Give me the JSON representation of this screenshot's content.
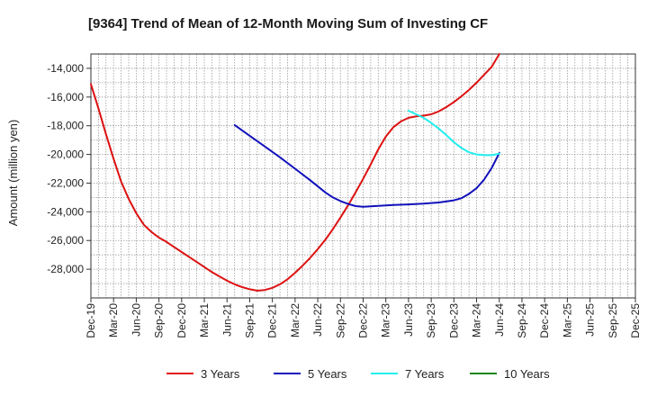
{
  "chart_data": {
    "type": "line",
    "title": "[9364]  Trend of Mean of 12-Month Moving Sum of Investing CF",
    "xlabel": "",
    "ylabel": "Amount (million yen)",
    "ylim": [
      -30000,
      -13000
    ],
    "y_ticks": [
      -28000,
      -26000,
      -24000,
      -22000,
      -20000,
      -18000,
      -16000,
      -14000
    ],
    "y_tick_labels": [
      "-28,000",
      "-26,000",
      "-24,000",
      "-22,000",
      "-20,000",
      "-18,000",
      "-16,000",
      "-14,000"
    ],
    "x_range_months": [
      0,
      72
    ],
    "x_ticks": [
      {
        "label": "Dec-19",
        "m": 0
      },
      {
        "label": "Mar-20",
        "m": 3
      },
      {
        "label": "Jun-20",
        "m": 6
      },
      {
        "label": "Sep-20",
        "m": 9
      },
      {
        "label": "Dec-20",
        "m": 12
      },
      {
        "label": "Mar-21",
        "m": 15
      },
      {
        "label": "Jun-21",
        "m": 18
      },
      {
        "label": "Sep-21",
        "m": 21
      },
      {
        "label": "Dec-21",
        "m": 24
      },
      {
        "label": "Mar-22",
        "m": 27
      },
      {
        "label": "Jun-22",
        "m": 30
      },
      {
        "label": "Sep-22",
        "m": 33
      },
      {
        "label": "Dec-22",
        "m": 36
      },
      {
        "label": "Mar-23",
        "m": 39
      },
      {
        "label": "Jun-23",
        "m": 42
      },
      {
        "label": "Sep-23",
        "m": 45
      },
      {
        "label": "Dec-23",
        "m": 48
      },
      {
        "label": "Mar-24",
        "m": 51
      },
      {
        "label": "Jun-24",
        "m": 54
      },
      {
        "label": "Sep-24",
        "m": 57
      },
      {
        "label": "Dec-24",
        "m": 60
      },
      {
        "label": "Mar-25",
        "m": 63
      },
      {
        "label": "Jun-25",
        "m": 66
      },
      {
        "label": "Sep-25",
        "m": 69
      },
      {
        "label": "Dec-25",
        "m": 72
      }
    ],
    "grid": true,
    "legend_position": "bottom",
    "series": [
      {
        "name": "3 Years",
        "color": "#dd1111",
        "points": [
          [
            0,
            -15100
          ],
          [
            1,
            -16800
          ],
          [
            2,
            -18600
          ],
          [
            3,
            -20300
          ],
          [
            4,
            -21900
          ],
          [
            5,
            -23100
          ],
          [
            6,
            -24100
          ],
          [
            7,
            -24900
          ],
          [
            8,
            -25400
          ],
          [
            9,
            -25800
          ],
          [
            10,
            -26100
          ],
          [
            11,
            -26450
          ],
          [
            12,
            -26800
          ],
          [
            13,
            -27150
          ],
          [
            14,
            -27500
          ],
          [
            15,
            -27850
          ],
          [
            16,
            -28200
          ],
          [
            17,
            -28500
          ],
          [
            18,
            -28800
          ],
          [
            19,
            -29050
          ],
          [
            20,
            -29250
          ],
          [
            21,
            -29400
          ],
          [
            22,
            -29500
          ],
          [
            23,
            -29450
          ],
          [
            24,
            -29300
          ],
          [
            25,
            -29050
          ],
          [
            26,
            -28700
          ],
          [
            27,
            -28250
          ],
          [
            28,
            -27750
          ],
          [
            29,
            -27200
          ],
          [
            30,
            -26600
          ],
          [
            31,
            -25950
          ],
          [
            32,
            -25200
          ],
          [
            33,
            -24400
          ],
          [
            34,
            -23550
          ],
          [
            35,
            -22650
          ],
          [
            36,
            -21700
          ],
          [
            37,
            -20700
          ],
          [
            38,
            -19650
          ],
          [
            39,
            -18750
          ],
          [
            40,
            -18100
          ],
          [
            41,
            -17700
          ],
          [
            42,
            -17450
          ],
          [
            43,
            -17350
          ],
          [
            44,
            -17300
          ],
          [
            45,
            -17200
          ],
          [
            46,
            -17000
          ],
          [
            47,
            -16700
          ],
          [
            48,
            -16350
          ],
          [
            49,
            -15950
          ],
          [
            50,
            -15500
          ],
          [
            51,
            -15000
          ],
          [
            52,
            -14450
          ],
          [
            53,
            -13900
          ],
          [
            54,
            -13000
          ]
        ]
      },
      {
        "name": "5 Years",
        "color": "#1111bb",
        "points": [
          [
            19,
            -17950
          ],
          [
            21,
            -18700
          ],
          [
            23,
            -19450
          ],
          [
            25,
            -20200
          ],
          [
            27,
            -21000
          ],
          [
            29,
            -21800
          ],
          [
            31,
            -22650
          ],
          [
            32,
            -23000
          ],
          [
            33,
            -23250
          ],
          [
            34,
            -23450
          ],
          [
            35,
            -23600
          ],
          [
            36,
            -23650
          ],
          [
            37,
            -23620
          ],
          [
            38,
            -23580
          ],
          [
            40,
            -23520
          ],
          [
            42,
            -23480
          ],
          [
            44,
            -23430
          ],
          [
            46,
            -23350
          ],
          [
            48,
            -23200
          ],
          [
            49,
            -23050
          ],
          [
            50,
            -22750
          ],
          [
            51,
            -22350
          ],
          [
            52,
            -21750
          ],
          [
            53,
            -20950
          ],
          [
            54,
            -19900
          ]
        ]
      },
      {
        "name": "7 Years",
        "color": "#22eeee",
        "points": [
          [
            42,
            -16950
          ],
          [
            43,
            -17200
          ],
          [
            44,
            -17450
          ],
          [
            45,
            -17800
          ],
          [
            46,
            -18200
          ],
          [
            47,
            -18650
          ],
          [
            48,
            -19150
          ],
          [
            49,
            -19550
          ],
          [
            50,
            -19850
          ],
          [
            51,
            -20000
          ],
          [
            52,
            -20050
          ],
          [
            53,
            -20050
          ],
          [
            54,
            -19950
          ]
        ]
      },
      {
        "name": "10 Years",
        "color": "#118811",
        "points": []
      }
    ]
  }
}
